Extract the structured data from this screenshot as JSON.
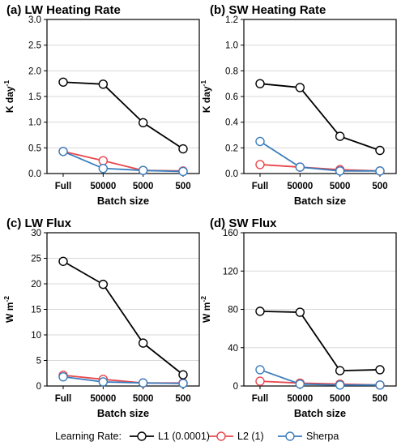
{
  "series_style": [
    {
      "name": "L1 (0.0001)",
      "color": "#000000"
    },
    {
      "name": "L2 (1)",
      "color": "#e8474c"
    },
    {
      "name": "Sherpa",
      "color": "#3a7dbd"
    }
  ],
  "legend": {
    "title": "Learning Rate:"
  },
  "chart_data": [
    {
      "type": "line",
      "title": "(a) LW Heating Rate",
      "ylabel": "K day",
      "ylabel_sup": "-1",
      "xlabel": "Batch size",
      "categories": [
        "Full",
        "50000",
        "5000",
        "500"
      ],
      "ylim": [
        0,
        3.0
      ],
      "yticks": [
        "0.0",
        "0.5",
        "1.0",
        "1.5",
        "2.0",
        "2.5",
        "3.0"
      ],
      "ytick_values": [
        0,
        0.5,
        1.0,
        1.5,
        2.0,
        2.5,
        3.0
      ],
      "grid": true,
      "series": [
        {
          "name": "L1 (0.0001)",
          "values": [
            1.78,
            1.74,
            0.99,
            0.48
          ]
        },
        {
          "name": "L2 (1)",
          "values": [
            0.43,
            0.25,
            0.06,
            0.05
          ]
        },
        {
          "name": "Sherpa",
          "values": [
            0.43,
            0.1,
            0.06,
            0.04
          ]
        }
      ]
    },
    {
      "type": "line",
      "title": "(b) SW Heating Rate",
      "ylabel": "K day",
      "ylabel_sup": "-1",
      "xlabel": "Batch size",
      "categories": [
        "Full",
        "50000",
        "5000",
        "500"
      ],
      "ylim": [
        0,
        1.2
      ],
      "yticks": [
        "0.0",
        "0.2",
        "0.4",
        "0.6",
        "0.8",
        "1.0",
        "1.2"
      ],
      "ytick_values": [
        0,
        0.2,
        0.4,
        0.6,
        0.8,
        1.0,
        1.2
      ],
      "grid": true,
      "series": [
        {
          "name": "L1 (0.0001)",
          "values": [
            0.7,
            0.67,
            0.29,
            0.18
          ]
        },
        {
          "name": "L2 (1)",
          "values": [
            0.07,
            0.05,
            0.03,
            0.02
          ]
        },
        {
          "name": "Sherpa",
          "values": [
            0.25,
            0.05,
            0.02,
            0.02
          ]
        }
      ]
    },
    {
      "type": "line",
      "title": "(c) LW Flux",
      "ylabel": "W m",
      "ylabel_sup": "-2",
      "xlabel": "Batch size",
      "categories": [
        "Full",
        "50000",
        "5000",
        "500"
      ],
      "ylim": [
        0,
        30
      ],
      "yticks": [
        "0",
        "5",
        "10",
        "15",
        "20",
        "25",
        "30"
      ],
      "ytick_values": [
        0,
        5,
        10,
        15,
        20,
        25,
        30
      ],
      "grid": true,
      "series": [
        {
          "name": "L1 (0.0001)",
          "values": [
            24.4,
            19.9,
            8.4,
            2.2
          ]
        },
        {
          "name": "L2 (1)",
          "values": [
            2.1,
            1.3,
            0.6,
            0.6
          ]
        },
        {
          "name": "Sherpa",
          "values": [
            1.8,
            0.8,
            0.6,
            0.5
          ]
        }
      ]
    },
    {
      "type": "line",
      "title": "(d) SW Flux",
      "ylabel": "W m",
      "ylabel_sup": "-2",
      "xlabel": "Batch size",
      "categories": [
        "Full",
        "50000",
        "5000",
        "500"
      ],
      "ylim": [
        0,
        160
      ],
      "yticks": [
        "0",
        "40",
        "80",
        "120",
        "160"
      ],
      "ytick_values": [
        0,
        40,
        80,
        120,
        160
      ],
      "grid": true,
      "series": [
        {
          "name": "L1 (0.0001)",
          "values": [
            78,
            77,
            16,
            17
          ]
        },
        {
          "name": "L2 (1)",
          "values": [
            5,
            3,
            2,
            1
          ]
        },
        {
          "name": "Sherpa",
          "values": [
            17,
            2,
            1,
            1
          ]
        }
      ]
    }
  ]
}
